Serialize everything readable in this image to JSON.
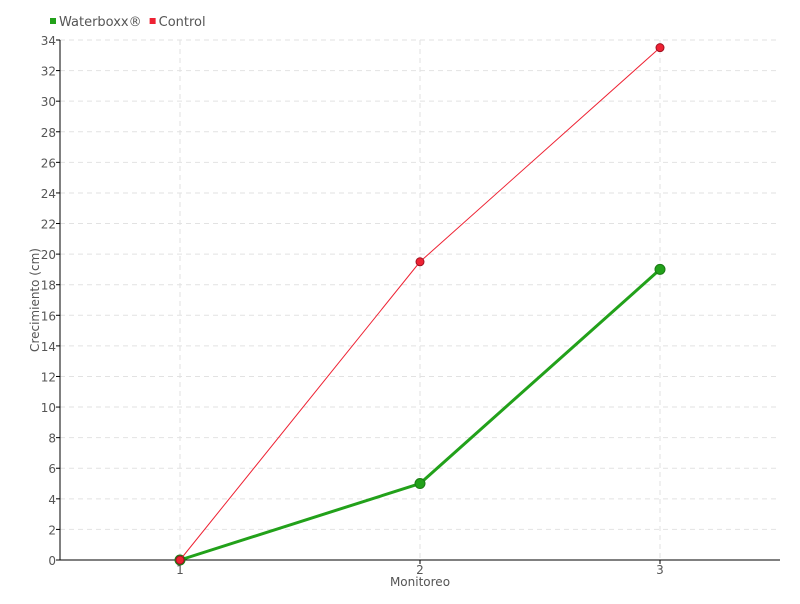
{
  "chart_data": {
    "type": "line",
    "title": "",
    "xlabel": "Monitoreo",
    "ylabel": "Crecimiento (cm)",
    "x": [
      1,
      2,
      3
    ],
    "xlim": [
      0.5,
      3.5
    ],
    "ylim": [
      0,
      34
    ],
    "yticks": [
      0,
      2,
      4,
      6,
      8,
      10,
      12,
      14,
      16,
      18,
      20,
      22,
      24,
      26,
      28,
      30,
      32,
      34
    ],
    "xticks": [
      1,
      2,
      3
    ],
    "grid": true,
    "legend_position": "top-left",
    "series": [
      {
        "name": "Waterboxx®",
        "values": [
          0,
          5,
          19
        ],
        "color": "#22a11a"
      },
      {
        "name": "Control",
        "values": [
          0,
          19.5,
          33.5
        ],
        "color": "#ee2233"
      }
    ]
  }
}
